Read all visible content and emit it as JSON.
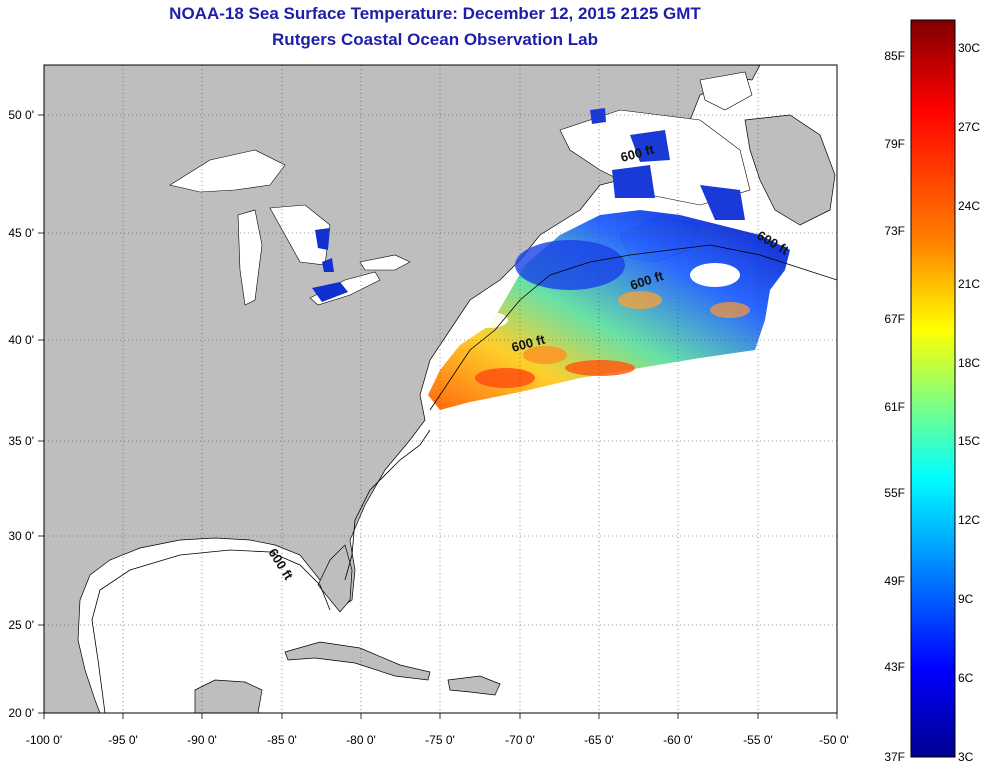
{
  "title": "NOAA-18 Sea Surface Temperature:  December 12, 2015 2125 GMT",
  "subtitle": "Rutgers Coastal Ocean Observation Lab",
  "map": {
    "lon_range": [
      -100,
      -50
    ],
    "lat_range": [
      20,
      52.5
    ],
    "lon_ticks": [
      "-100 0'",
      "-95 0'",
      "-90 0'",
      "-85 0'",
      "-80 0'",
      "-75 0'",
      "-70 0'",
      "-65 0'",
      "-60 0'",
      "-55 0'",
      "-50 0'"
    ],
    "lat_ticks": [
      "50 0'",
      "45 0'",
      "40 0'",
      "35 0'",
      "30 0'",
      "25 0'",
      "20 0'"
    ],
    "grid": true,
    "land_color": "#bebebe",
    "contour_labels": [
      "600 ft",
      "600 ft",
      "600 ft",
      "600 ft",
      "600 ft"
    ]
  },
  "colorbar": {
    "fahrenheit": [
      "85F",
      "79F",
      "73F",
      "67F",
      "61F",
      "55F",
      "49F",
      "43F",
      "37F"
    ],
    "celsius": [
      "30C",
      "27C",
      "24C",
      "21C",
      "18C",
      "15C",
      "12C",
      "9C",
      "6C",
      "3C"
    ],
    "colors": [
      "#7f0000",
      "#ff0000",
      "#ff8000",
      "#ffff00",
      "#80ff80",
      "#00ffff",
      "#0080ff",
      "#0000ff",
      "#00008f"
    ]
  }
}
